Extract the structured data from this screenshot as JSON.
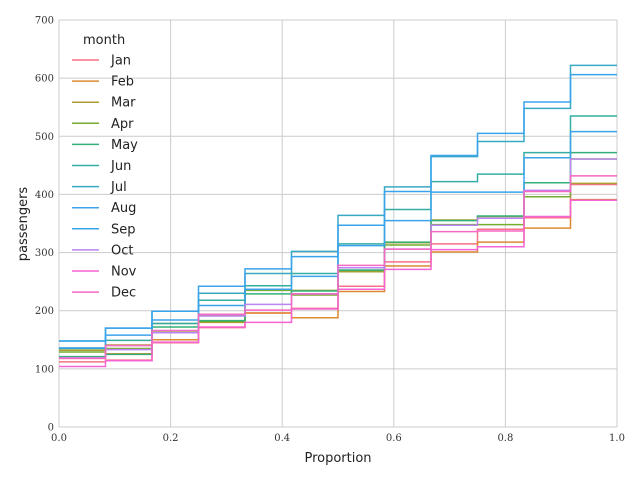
{
  "chart_data": {
    "type": "line",
    "subtype": "ecdf-step",
    "xlabel": "Proportion",
    "ylabel": "passengers",
    "xlim": [
      0.0,
      1.0
    ],
    "ylim": [
      0,
      700
    ],
    "x_ticks": [
      "0.0",
      "0.2",
      "0.4",
      "0.6",
      "0.8",
      "1.0"
    ],
    "y_ticks": [
      "0",
      "100",
      "200",
      "300",
      "400",
      "500",
      "600",
      "700"
    ],
    "grid": true,
    "legend": {
      "title": "month",
      "placement": "top-left"
    },
    "series": [
      {
        "name": "Jan",
        "color": "#f77189",
        "values": [
          112,
          115,
          145,
          171,
          196,
          204,
          242,
          284,
          315,
          340,
          360,
          417
        ]
      },
      {
        "name": "Feb",
        "color": "#dc8932",
        "values": [
          118,
          126,
          150,
          180,
          196,
          188,
          233,
          277,
          301,
          318,
          342,
          391
        ]
      },
      {
        "name": "Mar",
        "color": "#ae9d31",
        "values": [
          132,
          141,
          178,
          193,
          236,
          235,
          267,
          317,
          356,
          362,
          406,
          419
        ]
      },
      {
        "name": "Apr",
        "color": "#77ab31",
        "values": [
          129,
          135,
          163,
          181,
          235,
          227,
          269,
          313,
          348,
          348,
          396,
          461
        ]
      },
      {
        "name": "May",
        "color": "#33b07a",
        "values": [
          121,
          125,
          172,
          183,
          229,
          234,
          270,
          318,
          355,
          363,
          420,
          472
        ]
      },
      {
        "name": "Jun",
        "color": "#36ada4",
        "values": [
          135,
          149,
          178,
          218,
          243,
          264,
          315,
          374,
          422,
          435,
          472,
          535
        ]
      },
      {
        "name": "Jul",
        "color": "#38a9c5",
        "values": [
          148,
          170,
          199,
          230,
          264,
          302,
          364,
          413,
          465,
          491,
          548,
          622
        ]
      },
      {
        "name": "Aug",
        "color": "#3ba3ec",
        "values": [
          148,
          170,
          199,
          242,
          272,
          293,
          347,
          405,
          467,
          505,
          559,
          606
        ]
      },
      {
        "name": "Sep",
        "color": "#3ba3ec",
        "values": [
          136,
          158,
          184,
          209,
          237,
          259,
          312,
          355,
          404,
          404,
          463,
          508
        ]
      },
      {
        "name": "Oct",
        "color": "#bb83f4",
        "values": [
          119,
          133,
          162,
          191,
          211,
          229,
          274,
          306,
          347,
          359,
          407,
          461
        ]
      },
      {
        "name": "Nov",
        "color": "#f564d4",
        "values": [
          104,
          114,
          146,
          172,
          180,
          203,
          237,
          271,
          305,
          310,
          362,
          390
        ]
      },
      {
        "name": "Dec",
        "color": "#f668c2",
        "values": [
          118,
          140,
          166,
          194,
          201,
          229,
          278,
          306,
          336,
          337,
          405,
          432
        ]
      }
    ]
  }
}
